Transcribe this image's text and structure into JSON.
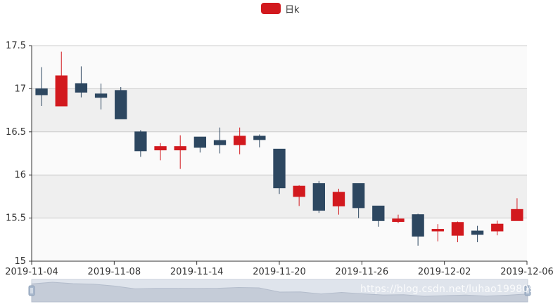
{
  "chart_data": {
    "type": "candlestick",
    "title": "",
    "legend": {
      "label": "日k",
      "color": "#d2191e",
      "position": "top-center"
    },
    "colors": {
      "up": "#d2191e",
      "down": "#2d4760",
      "band": "#efefef",
      "gridline": "#cccccc"
    },
    "ylim": [
      15,
      17.5
    ],
    "y_ticks": [
      "15",
      "15.5",
      "16",
      "16.5",
      "17",
      "17.5"
    ],
    "x_ticks": [
      "2019-11-04",
      "2019-11-08",
      "2019-11-14",
      "2019-11-20",
      "2019-11-26",
      "2019-12-02",
      "2019-12-06"
    ],
    "grid": true,
    "candles": [
      {
        "open": 17.0,
        "close": 16.93,
        "high": 17.25,
        "low": 16.8
      },
      {
        "open": 16.8,
        "close": 17.15,
        "high": 17.43,
        "low": 16.8
      },
      {
        "open": 17.06,
        "close": 16.96,
        "high": 17.26,
        "low": 16.9
      },
      {
        "open": 16.94,
        "close": 16.9,
        "high": 17.06,
        "low": 16.76
      },
      {
        "open": 16.98,
        "close": 16.65,
        "high": 17.02,
        "low": 16.65
      },
      {
        "open": 16.5,
        "close": 16.28,
        "high": 16.52,
        "low": 16.21
      },
      {
        "open": 16.29,
        "close": 16.33,
        "high": 16.37,
        "low": 16.17
      },
      {
        "open": 16.29,
        "close": 16.33,
        "high": 16.46,
        "low": 16.07
      },
      {
        "open": 16.44,
        "close": 16.32,
        "high": 16.44,
        "low": 16.26
      },
      {
        "open": 16.4,
        "close": 16.35,
        "high": 16.55,
        "low": 16.25
      },
      {
        "open": 16.35,
        "close": 16.45,
        "high": 16.55,
        "low": 16.24
      },
      {
        "open": 16.45,
        "close": 16.41,
        "high": 16.47,
        "low": 16.32
      },
      {
        "open": 16.3,
        "close": 15.85,
        "high": 16.3,
        "low": 15.78
      },
      {
        "open": 15.75,
        "close": 15.87,
        "high": 15.88,
        "low": 15.64
      },
      {
        "open": 15.9,
        "close": 15.59,
        "high": 15.93,
        "low": 15.56
      },
      {
        "open": 15.64,
        "close": 15.8,
        "high": 15.84,
        "low": 15.54
      },
      {
        "open": 15.9,
        "close": 15.62,
        "high": 15.9,
        "low": 15.5
      },
      {
        "open": 15.64,
        "close": 15.47,
        "high": 15.64,
        "low": 15.4
      },
      {
        "open": 15.46,
        "close": 15.49,
        "high": 15.54,
        "low": 15.44
      },
      {
        "open": 15.54,
        "close": 15.29,
        "high": 15.55,
        "low": 15.18
      },
      {
        "open": 15.35,
        "close": 15.37,
        "high": 15.43,
        "low": 15.23
      },
      {
        "open": 15.3,
        "close": 15.45,
        "high": 15.46,
        "low": 15.22
      },
      {
        "open": 15.35,
        "close": 15.31,
        "high": 15.41,
        "low": 15.22
      },
      {
        "open": 15.35,
        "close": 15.43,
        "high": 15.47,
        "low": 15.3
      },
      {
        "open": 15.47,
        "close": 15.6,
        "high": 15.73,
        "low": 15.47
      }
    ]
  },
  "zoom_slider": {
    "range": [
      0,
      100
    ]
  },
  "watermark": "https://blog.csdn.net/luhao19980909"
}
